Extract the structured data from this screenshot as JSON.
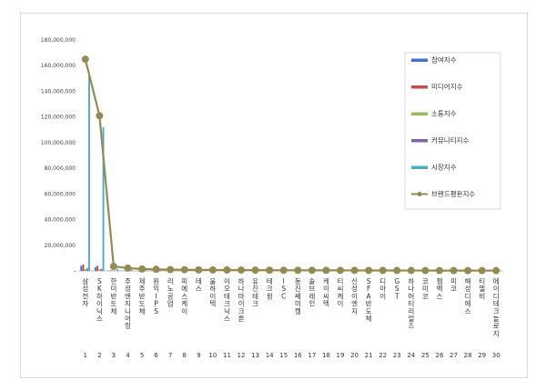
{
  "chart_data": {
    "type": "bar",
    "title": "",
    "xlabel": "",
    "ylabel": "",
    "ylim": [
      0,
      180000000
    ],
    "yticks": [
      "180,000,000",
      "160,000,000",
      "140,000,000",
      "120,000,000",
      "100,000,000",
      "80,000,000",
      "60,000,000",
      "40,000,000",
      "20,000,000",
      "-"
    ],
    "grid": false,
    "legend_position": "right",
    "indices": [
      "1",
      "2",
      "3",
      "4",
      "5",
      "6",
      "7",
      "8",
      "9",
      "10",
      "11",
      "12",
      "13",
      "14",
      "15",
      "16",
      "17",
      "18",
      "19",
      "20",
      "21",
      "22",
      "23",
      "24",
      "25",
      "26",
      "27",
      "28",
      "29",
      "30"
    ],
    "categories": [
      "삼성전자",
      "SK하이닉스",
      "한미반도체",
      "주성엔지니어링",
      "제주반도체",
      "원익IPS",
      "리노공업",
      "피에스케이",
      "테스",
      "울하이텍",
      "이오테크닉스",
      "하나마이크론",
      "유진테크",
      "테크윙",
      "ISC",
      "동진쎄미켐",
      "솔브레인",
      "케이씨텍",
      "티씨케이",
      "신성이엔지",
      "SFA반도체",
      "디아이",
      "GST",
      "하나머티리얼즈",
      "코미코",
      "젬백스",
      "미코",
      "해성디에스",
      "티엘비",
      "에이디테크놀로지"
    ],
    "series": [
      {
        "name": "참여지수",
        "color": "#4472c4",
        "values": [
          4000000,
          3000000,
          250000,
          150000,
          120000,
          100000,
          90000,
          80000,
          70000,
          60000,
          60000,
          55000,
          50000,
          45000,
          40000,
          40000,
          38000,
          35000,
          33000,
          30000,
          28000,
          26000,
          25000,
          24000,
          22000,
          21000,
          20000,
          19000,
          18000,
          17000
        ]
      },
      {
        "name": "미디어지수",
        "color": "#c0504d",
        "values": [
          5000000,
          4000000,
          500000,
          300000,
          250000,
          200000,
          180000,
          160000,
          150000,
          140000,
          130000,
          120000,
          110000,
          100000,
          95000,
          90000,
          85000,
          80000,
          75000,
          70000,
          65000,
          60000,
          55000,
          50000,
          48000,
          45000,
          42000,
          40000,
          38000,
          35000
        ]
      },
      {
        "name": "소통지수",
        "color": "#9bbb59",
        "values": [
          1500000,
          1200000,
          200000,
          120000,
          100000,
          90000,
          80000,
          70000,
          60000,
          55000,
          50000,
          45000,
          40000,
          38000,
          35000,
          33000,
          30000,
          28000,
          26000,
          25000,
          24000,
          22000,
          21000,
          20000,
          19000,
          18000,
          17000,
          16000,
          15000,
          14000
        ]
      },
      {
        "name": "커뮤니티지수",
        "color": "#8064a2",
        "values": [
          2000000,
          1500000,
          300000,
          150000,
          120000,
          100000,
          90000,
          80000,
          70000,
          60000,
          55000,
          50000,
          45000,
          40000,
          38000,
          35000,
          33000,
          30000,
          28000,
          26000,
          25000,
          24000,
          22000,
          21000,
          20000,
          19000,
          18000,
          17000,
          16000,
          15000
        ]
      },
      {
        "name": "시장지수",
        "color": "#4bacc6",
        "values": [
          152000000,
          112000000,
          1500000,
          800000,
          700000,
          600000,
          550000,
          500000,
          450000,
          420000,
          400000,
          380000,
          350000,
          330000,
          300000,
          280000,
          260000,
          250000,
          240000,
          230000,
          220000,
          210000,
          200000,
          190000,
          180000,
          170000,
          160000,
          150000,
          140000,
          130000
        ]
      },
      {
        "name": "브랜드평판지수",
        "color": "#948a54",
        "type": "line",
        "values": [
          165000000,
          121000000,
          3500000,
          2200000,
          1500000,
          1200000,
          1000000,
          900000,
          800000,
          750000,
          700000,
          650000,
          600000,
          550000,
          500000,
          480000,
          460000,
          440000,
          420000,
          400000,
          380000,
          360000,
          340000,
          320000,
          300000,
          290000,
          280000,
          270000,
          260000,
          250000
        ]
      }
    ]
  }
}
